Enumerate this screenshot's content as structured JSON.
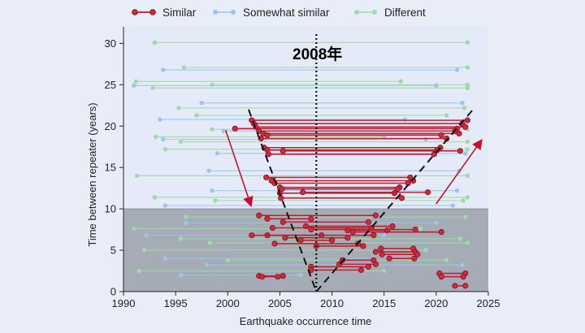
{
  "chart_data": {
    "type": "line",
    "title": "",
    "annotation": "2008年",
    "xlabel": "Earthquake occurrence time",
    "ylabel": "Time between repeater (years)",
    "xlim": [
      1990,
      2025
    ],
    "ylim": [
      0,
      32
    ],
    "x_ticks": [
      1990,
      1995,
      2000,
      2005,
      2010,
      2015,
      2020,
      2025
    ],
    "y_ticks": [
      0,
      5,
      10,
      15,
      20,
      25,
      30
    ],
    "shaded_region": {
      "y_from": 0,
      "y_to": 10
    },
    "vertical_line_x": 2008.5,
    "v_guide": {
      "apex": [
        2008.5,
        0
      ],
      "left_top": [
        2002.0,
        22.0
      ],
      "right_top": [
        2023.6,
        22.1
      ]
    },
    "legend": [
      {
        "name": "Similar",
        "color": "#c0182f"
      },
      {
        "name": "Somewhat similar",
        "color": "#9cc4ec"
      },
      {
        "name": "Different",
        "color": "#9fdaa8"
      }
    ],
    "series": [
      {
        "name": "Different",
        "color": "#9fdaa8",
        "pairs": [
          [
            1993.0,
            30.1,
            2023.0,
            30.1
          ],
          [
            1995.8,
            27.1,
            2023.0,
            27.1
          ],
          [
            1991.2,
            25.4,
            2016.6,
            25.4
          ],
          [
            1992.8,
            24.6,
            2023.0,
            24.6
          ],
          [
            1998.5,
            25.0,
            2023.0,
            25.0
          ],
          [
            1995.3,
            22.2,
            2022.7,
            22.2
          ],
          [
            1997.0,
            21.3,
            2021.0,
            21.3
          ],
          [
            1993.1,
            18.7,
            2015.0,
            18.7
          ],
          [
            1998.5,
            19.6,
            2023.0,
            19.6
          ],
          [
            1995.5,
            18.1,
            2023.0,
            18.1
          ],
          [
            1994.0,
            17.2,
            2023.0,
            17.2
          ],
          [
            1991.3,
            14.0,
            2023.0,
            14.0
          ],
          [
            1993.0,
            11.4,
            2023.0,
            11.4
          ],
          [
            1998.8,
            11.0,
            2022.6,
            11.0
          ],
          [
            1996.0,
            9.0,
            2022.8,
            9.0
          ],
          [
            1991.0,
            7.6,
            2018.5,
            7.6
          ],
          [
            1995.5,
            6.4,
            2022.3,
            6.4
          ],
          [
            1998.3,
            5.9,
            2023.0,
            5.9
          ],
          [
            1992.0,
            5.0,
            2019.0,
            5.0
          ],
          [
            2000.0,
            3.8,
            2021.0,
            3.8
          ],
          [
            1991.5,
            2.5,
            2015.0,
            2.5
          ]
        ]
      },
      {
        "name": "Somewhat similar",
        "color": "#9cc4ec",
        "pairs": [
          [
            1993.8,
            26.8,
            2022.0,
            26.8
          ],
          [
            1991.0,
            24.9,
            2020.0,
            24.9
          ],
          [
            1997.5,
            22.8,
            2022.5,
            22.8
          ],
          [
            1993.5,
            20.8,
            2017.0,
            20.8
          ],
          [
            1999.6,
            19.4,
            2022.0,
            19.4
          ],
          [
            1993.8,
            18.4,
            2019.0,
            18.4
          ],
          [
            1999.0,
            16.7,
            2022.8,
            16.7
          ],
          [
            1998.2,
            14.6,
            2022.2,
            14.6
          ],
          [
            1998.5,
            12.2,
            2022.0,
            12.2
          ],
          [
            1994.0,
            10.4,
            2021.6,
            10.4
          ],
          [
            1996.0,
            8.3,
            2020.0,
            8.3
          ],
          [
            1992.2,
            6.8,
            2015.0,
            6.8
          ],
          [
            1994.0,
            4.0,
            2014.0,
            4.0
          ],
          [
            1998.0,
            3.2,
            2022.5,
            3.2
          ],
          [
            1995.5,
            2.0,
            2007.0,
            2.0
          ]
        ]
      },
      {
        "name": "Similar",
        "color": "#c0182f",
        "pairs": [
          [
            2002.3,
            20.7,
            2023.0,
            20.7
          ],
          [
            2002.5,
            20.3,
            2022.5,
            20.3
          ],
          [
            2002.7,
            19.9,
            2022.8,
            19.9
          ],
          [
            2000.7,
            19.7,
            2022.0,
            19.7
          ],
          [
            2003.0,
            19.4,
            2021.8,
            19.4
          ],
          [
            2003.4,
            19.1,
            2022.2,
            19.1
          ],
          [
            2003.8,
            18.9,
            2020.5,
            18.9
          ],
          [
            2003.2,
            18.5,
            2021.0,
            18.5
          ],
          [
            2003.5,
            17.4,
            2020.4,
            17.4
          ],
          [
            2003.8,
            17.1,
            2020.1,
            17.1
          ],
          [
            2005.3,
            17.0,
            2022.3,
            17.0
          ],
          [
            2003.9,
            16.6,
            2019.8,
            16.6
          ],
          [
            2003.7,
            13.8,
            2017.5,
            13.8
          ],
          [
            2004.2,
            13.4,
            2017.8,
            13.4
          ],
          [
            2004.5,
            13.1,
            2017.3,
            13.1
          ],
          [
            2005.0,
            12.6,
            2016.5,
            12.6
          ],
          [
            2005.2,
            12.4,
            2016.3,
            12.4
          ],
          [
            2005.0,
            11.9,
            2016.0,
            11.9
          ],
          [
            2005.1,
            11.3,
            2016.7,
            11.3
          ],
          [
            2007.2,
            12.0,
            2019.2,
            12.0
          ],
          [
            2003.0,
            9.2,
            2014.2,
            9.2
          ],
          [
            2003.8,
            8.8,
            2008.0,
            8.8
          ],
          [
            2005.3,
            8.4,
            2013.5,
            8.4
          ],
          [
            2007.5,
            7.9,
            2015.8,
            7.9
          ],
          [
            2004.3,
            7.7,
            2013.8,
            7.7
          ],
          [
            2008.0,
            7.5,
            2018.0,
            7.5
          ],
          [
            2011.5,
            7.4,
            2015.3,
            7.4
          ],
          [
            2012.0,
            7.2,
            2020.5,
            7.2
          ],
          [
            2003.8,
            6.8,
            2009.0,
            6.8
          ],
          [
            2005.5,
            6.5,
            2011.5,
            6.5
          ],
          [
            2002.3,
            6.8,
            2014.0,
            6.8
          ],
          [
            2007.0,
            6.2,
            2010.0,
            6.2
          ],
          [
            2004.5,
            5.8,
            2012.5,
            5.8
          ],
          [
            2008.5,
            5.5,
            2013.0,
            5.5
          ],
          [
            2014.7,
            5.2,
            2017.8,
            5.2
          ],
          [
            2014.2,
            4.8,
            2018.0,
            4.8
          ],
          [
            2014.8,
            4.5,
            2018.2,
            4.5
          ],
          [
            2015.5,
            4.0,
            2017.9,
            4.0
          ],
          [
            2011.0,
            3.8,
            2014.0,
            3.8
          ],
          [
            2010.7,
            3.3,
            2014.2,
            3.3
          ],
          [
            2008.0,
            3.0,
            2013.5,
            3.0
          ],
          [
            2008.0,
            2.6,
            2012.8,
            2.6
          ],
          [
            2003.0,
            1.9,
            2005.3,
            1.9
          ],
          [
            2003.3,
            1.8,
            2004.8,
            1.8
          ],
          [
            2020.3,
            2.2,
            2022.8,
            2.2
          ],
          [
            2020.5,
            1.8,
            2022.6,
            1.8
          ],
          [
            2021.8,
            0.7,
            2022.8,
            0.7
          ]
        ]
      }
    ]
  }
}
